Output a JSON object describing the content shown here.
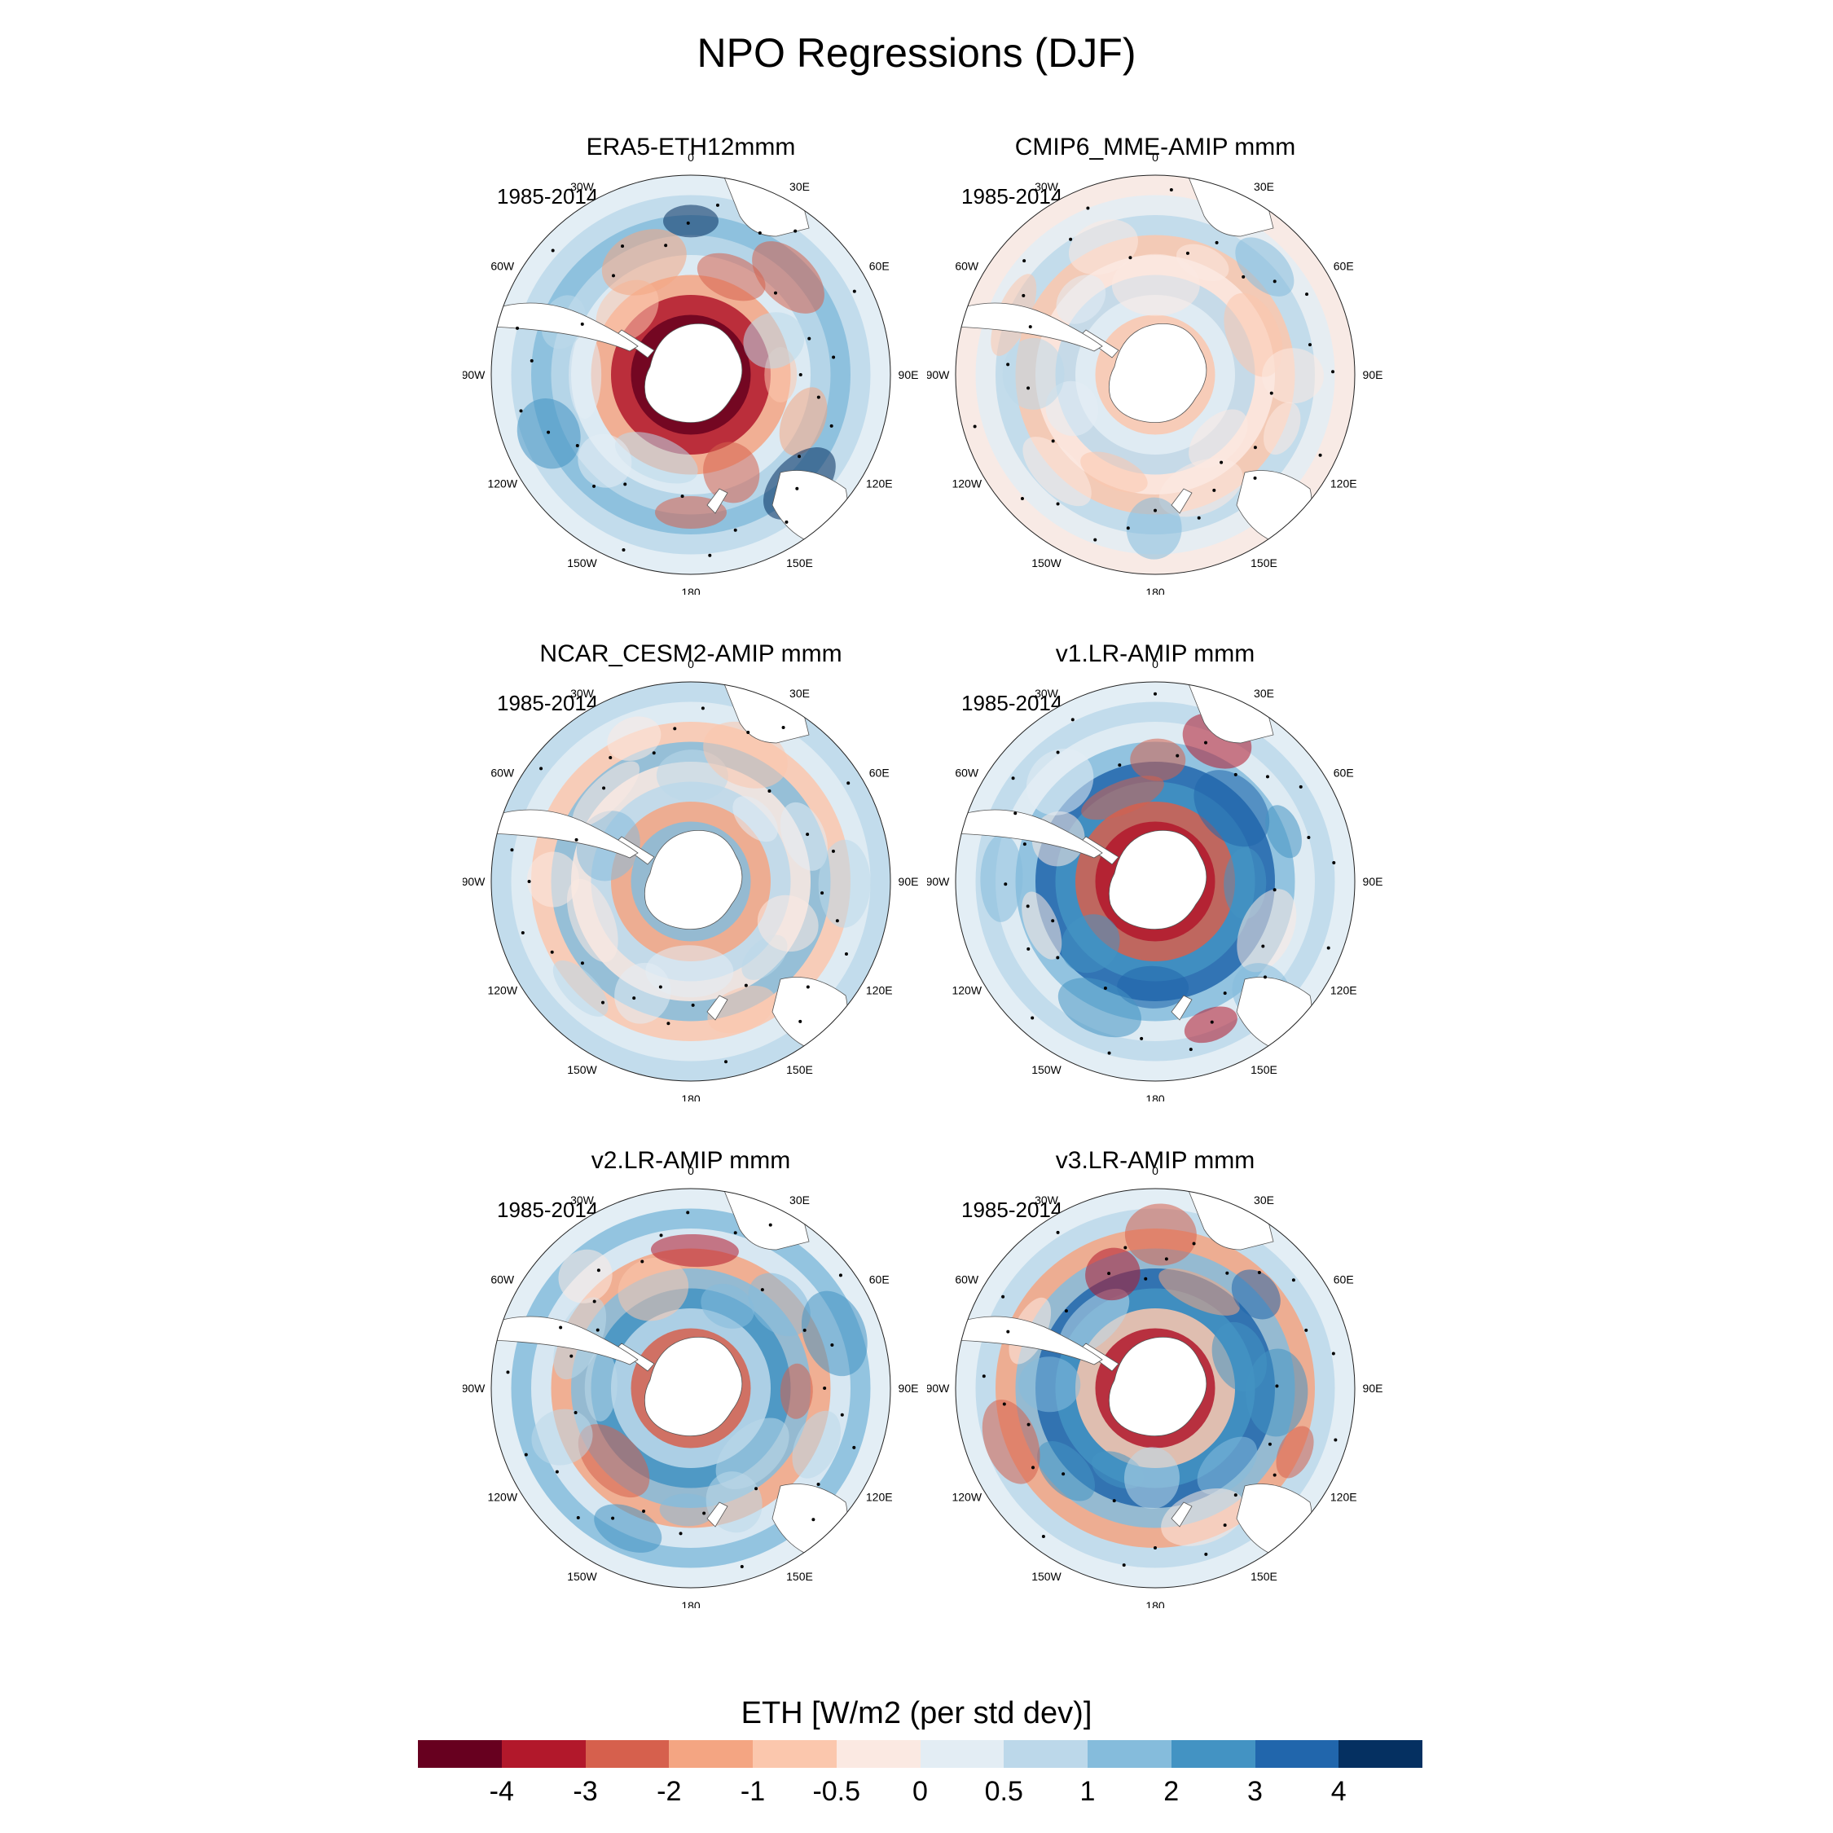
{
  "title": "NPO Regressions (DJF)",
  "period": "1985-2014",
  "longitude_labels": [
    "0",
    "30E",
    "60E",
    "90E",
    "120E",
    "150E",
    "180",
    "150W",
    "120W",
    "90W",
    "60W",
    "30W"
  ],
  "panels": [
    {
      "title": "ERA5-ETH12mmm",
      "pattern": "strong-negative-ring"
    },
    {
      "title": "CMIP6_MME-AMIP  mmm",
      "pattern": "weak-mixed"
    },
    {
      "title": "NCAR_CESM2-AMIP  mmm",
      "pattern": "mixed"
    },
    {
      "title": "v1.LR-AMIP  mmm",
      "pattern": "negative-ring-positive-outer"
    },
    {
      "title": "v2.LR-AMIP  mmm",
      "pattern": "dipole"
    },
    {
      "title": "v3.LR-AMIP  mmm",
      "pattern": "dipole-ring"
    }
  ],
  "colorbar": {
    "title": "ETH [W/m2 (per std dev)]",
    "colors": [
      "#67001f",
      "#b2182b",
      "#d6604d",
      "#f4a582",
      "#fbc7ad",
      "#fbe9e2",
      "#e3edf4",
      "#bcd8ea",
      "#85bcdc",
      "#4393c3",
      "#2166ac",
      "#053061"
    ],
    "tick_labels": [
      "-4",
      "-3",
      "-2",
      "-1",
      "-0.5",
      "0",
      "0.5",
      "1",
      "2",
      "3",
      "4"
    ]
  }
}
